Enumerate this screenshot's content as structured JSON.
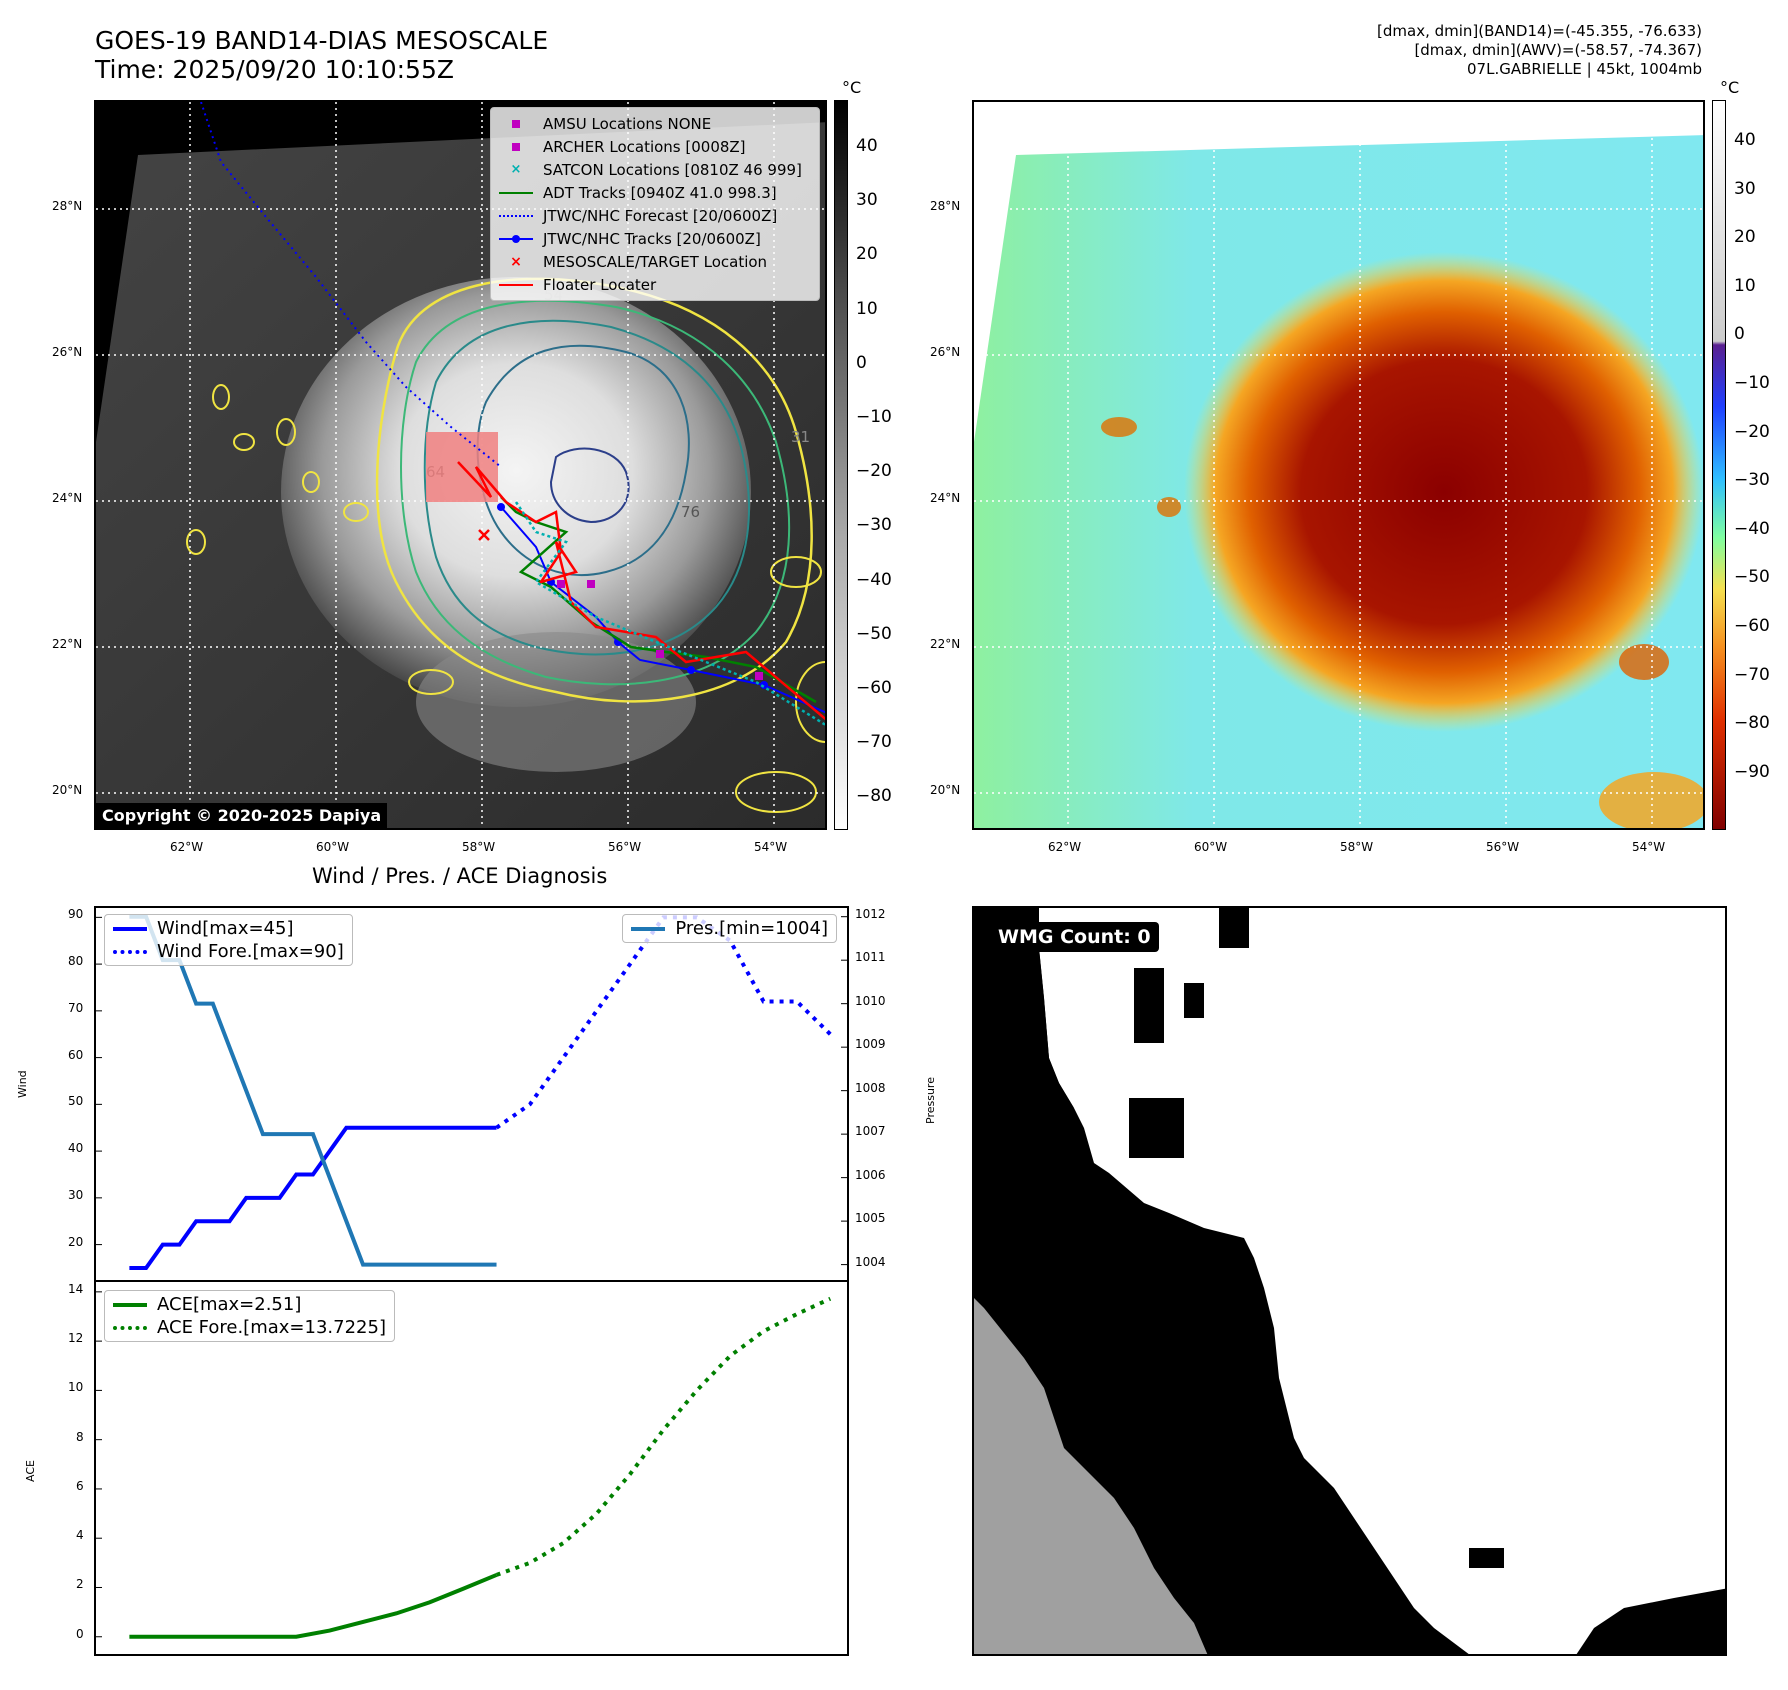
{
  "header": {
    "title_line1": "GOES-19 BAND14-DIAS MESOSCALE",
    "title_line2": "Time: 2025/09/20 10:10:55Z",
    "stats_line1": "[dmax, dmin](BAND14)=(-45.355, -76.633)",
    "stats_line2": "[dmax, dmin](AWV)=(-58.57, -74.367)",
    "stats_line3": "07L.GABRIELLE | 45kt, 1004mb"
  },
  "ir_panel": {
    "copyright": "Copyright © 2020-2025 Dapiya",
    "colorbar_unit": "°C",
    "colorbar_ticks": [
      "40",
      "30",
      "20",
      "10",
      "0",
      "−10",
      "−20",
      "−30",
      "−40",
      "−50",
      "−60",
      "−70",
      "−80"
    ],
    "legend": [
      {
        "label": "AMSU Locations NONE",
        "color": "#c000c0"
      },
      {
        "label": "ARCHER Locations [0008Z]",
        "color": "#c000c0"
      },
      {
        "label": "SATCON Locations [0810Z 46 999]",
        "color": "#00b0b0"
      },
      {
        "label": "ADT Tracks [0940Z 41.0 998.3]",
        "color": "#008000"
      },
      {
        "label": "JTWC/NHC Forecast [20/0600Z]",
        "color": "#0000ff"
      },
      {
        "label": "JTWC/NHC Tracks [20/0600Z]",
        "color": "#0000ff"
      },
      {
        "label": "MESOSCALE/TARGET Location",
        "color": "#ff0000"
      },
      {
        "label": "Floater Locater",
        "color": "#ff0000"
      }
    ],
    "contour_labels": [
      "54",
      "31",
      "64",
      "76"
    ]
  },
  "map_axes": {
    "lat_ticks": [
      "28°N",
      "26°N",
      "24°N",
      "22°N",
      "20°N"
    ],
    "lon_ticks": [
      "62°W",
      "60°W",
      "58°W",
      "56°W",
      "54°W"
    ]
  },
  "awv_panel": {
    "colorbar_unit": "°C",
    "colorbar_ticks": [
      "40",
      "30",
      "20",
      "10",
      "0",
      "−10",
      "−20",
      "−30",
      "−40",
      "−50",
      "−60",
      "−70",
      "−80",
      "−90"
    ]
  },
  "wmg_panel": {
    "label": "WMG Count: 0"
  },
  "chart_data": [
    {
      "type": "line",
      "title": "Wind / Pres. / ACE Diagnosis",
      "ylabel": "Wind",
      "ylabel_right": "Pressure",
      "ylim": [
        12,
        92
      ],
      "ylim_right": [
        1003.6,
        1012.2
      ],
      "yticks": [
        20,
        30,
        40,
        50,
        60,
        70,
        80,
        90
      ],
      "yticks_right": [
        1004,
        1005,
        1006,
        1007,
        1008,
        1009,
        1010,
        1011,
        1012
      ],
      "xlim": [
        -1,
        44
      ],
      "series": [
        {
          "name": "Wind[max=45]",
          "style": "solid",
          "color": "#0000ff",
          "x": [
            1,
            2,
            2,
            3,
            3,
            4,
            4,
            5,
            5,
            6,
            6,
            7,
            7,
            8,
            8,
            9,
            9,
            10,
            10,
            11,
            11,
            12,
            12,
            13,
            13,
            14,
            14,
            15,
            15,
            16,
            16,
            17,
            17,
            18,
            18,
            19,
            19,
            20,
            20,
            21,
            21,
            22,
            22,
            23,
            23
          ],
          "values": [
            15,
            15,
            15,
            20,
            20,
            20,
            20,
            25,
            25,
            25,
            25,
            25,
            25,
            30,
            30,
            30,
            30,
            30,
            30,
            35,
            35,
            35,
            35,
            40,
            40,
            45,
            45,
            45,
            45,
            45,
            45,
            45,
            45,
            45,
            45,
            45,
            45,
            45,
            45,
            45,
            45,
            45,
            45,
            45,
            45
          ]
        },
        {
          "name": "Wind Fore.[max=90]",
          "style": "dotted",
          "color": "#0000ff",
          "x": [
            23,
            25,
            27,
            29,
            31,
            33,
            35,
            37,
            39,
            41,
            43
          ],
          "values": [
            45,
            50,
            60,
            70,
            80,
            90,
            90,
            85,
            72,
            72,
            65
          ]
        },
        {
          "name": "Pres.[min=1004]",
          "style": "solid",
          "color": "#1f77b4",
          "axis": "right",
          "x": [
            1,
            2,
            3,
            4,
            5,
            6,
            7,
            8,
            9,
            10,
            11,
            12,
            13,
            14,
            15,
            16,
            17,
            18,
            19,
            20,
            21,
            22,
            23
          ],
          "values": [
            1012,
            1012,
            1011,
            1011,
            1010,
            1010,
            1009,
            1008,
            1007,
            1007,
            1007,
            1007,
            1006,
            1005,
            1004,
            1004,
            1004,
            1004,
            1004,
            1004,
            1004,
            1004,
            1004
          ]
        }
      ]
    },
    {
      "type": "line",
      "ylabel": "ACE",
      "ylim": [
        -0.7,
        14.4
      ],
      "yticks": [
        0,
        2,
        4,
        6,
        8,
        10,
        12,
        14
      ],
      "xlim": [
        -1,
        44
      ],
      "series": [
        {
          "name": "ACE[max=2.51]",
          "style": "solid",
          "color": "#008000",
          "x": [
            1,
            3,
            5,
            7,
            9,
            11,
            13,
            15,
            17,
            19,
            21,
            23
          ],
          "values": [
            0,
            0,
            0,
            0,
            0,
            0,
            0.25,
            0.6,
            0.95,
            1.4,
            1.95,
            2.51
          ]
        },
        {
          "name": "ACE Fore.[max=13.7225]",
          "style": "dotted",
          "color": "#008000",
          "x": [
            23,
            25,
            27,
            29,
            31,
            33,
            35,
            37,
            39,
            41,
            43
          ],
          "values": [
            2.51,
            3.0,
            3.8,
            5.0,
            6.6,
            8.4,
            10.0,
            11.4,
            12.4,
            13.1,
            13.7225
          ]
        }
      ]
    }
  ]
}
